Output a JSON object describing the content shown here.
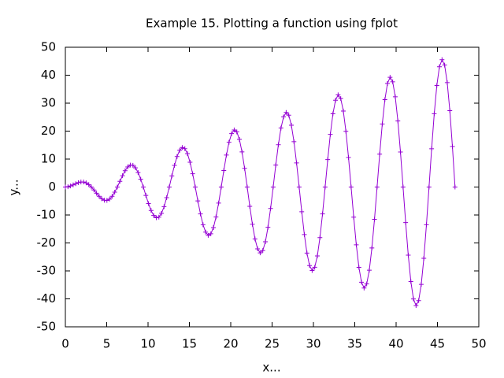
{
  "chart_data": {
    "type": "line",
    "title": "Example 15. Plotting a function using fplot",
    "xlabel": "x...",
    "ylabel": "y...",
    "x": [
      0,
      0.314,
      0.628,
      0.942,
      1.257,
      1.571,
      1.885,
      2.199,
      2.513,
      2.827,
      3.142,
      3.456,
      3.77,
      4.084,
      4.398,
      4.712,
      5.027,
      5.341,
      5.655,
      5.969,
      6.283,
      6.597,
      6.912,
      7.226,
      7.54,
      7.854,
      8.168,
      8.482,
      8.796,
      9.111,
      9.425,
      9.739,
      10.053,
      10.367,
      10.681,
      10.996,
      11.31,
      11.624,
      11.938,
      12.252,
      12.566,
      12.881,
      13.195,
      13.509,
      13.823,
      14.137,
      14.451,
      14.765,
      15.08,
      15.394,
      15.708,
      16.022,
      16.336,
      16.65,
      16.965,
      17.279,
      17.593,
      17.907,
      18.221,
      18.535,
      18.85,
      19.164,
      19.478,
      19.792,
      20.106,
      20.42,
      20.735,
      21.049,
      21.363,
      21.677,
      21.991,
      22.305,
      22.619,
      22.934,
      23.248,
      23.562,
      23.876,
      24.19,
      24.504,
      24.819,
      25.133,
      25.447,
      25.761,
      26.075,
      26.389,
      26.704,
      27.018,
      27.332,
      27.646,
      27.96,
      28.274,
      28.588,
      28.903,
      29.217,
      29.531,
      29.845,
      30.159,
      30.473,
      30.788,
      31.102,
      31.416,
      31.73,
      32.044,
      32.358,
      32.673,
      32.987,
      33.301,
      33.615,
      33.929,
      34.243,
      34.558,
      34.872,
      35.186,
      35.5,
      35.814,
      36.128,
      36.442,
      36.757,
      37.071,
      37.385,
      37.699,
      38.013,
      38.327,
      38.642,
      38.956,
      39.27,
      39.584,
      39.898,
      40.212,
      40.527,
      40.841,
      41.155,
      41.469,
      41.783,
      42.097,
      42.412,
      42.726,
      43.04,
      43.354,
      43.668,
      43.982,
      44.296,
      44.611,
      44.925,
      45.239,
      45.553,
      45.867,
      46.181,
      46.496,
      46.81,
      47.124
    ],
    "series": [
      {
        "color": "#9400d3",
        "values": [
          0,
          0.1,
          0.37,
          0.76,
          1.2,
          1.57,
          1.79,
          1.78,
          1.48,
          0.87,
          0,
          -1.07,
          -2.22,
          -3.3,
          -4.18,
          -4.71,
          -4.78,
          -4.32,
          -3.32,
          -1.84,
          0,
          2.04,
          4.06,
          5.85,
          7.17,
          7.85,
          7.77,
          6.86,
          5.17,
          2.82,
          0,
          -3.01,
          -5.91,
          -8.39,
          -10.16,
          -11.0,
          -10.76,
          -9.4,
          -7.02,
          -3.79,
          0,
          3.98,
          7.76,
          10.93,
          13.15,
          14.14,
          13.74,
          11.95,
          8.86,
          4.76,
          0,
          -4.95,
          -9.6,
          -13.47,
          -16.13,
          -17.28,
          -16.73,
          -14.49,
          -10.71,
          -5.73,
          0,
          5.92,
          11.45,
          16.01,
          19.12,
          20.42,
          19.72,
          17.03,
          12.56,
          6.7,
          0,
          -6.89,
          -13.3,
          -18.55,
          -22.11,
          -23.56,
          -22.71,
          -19.57,
          -14.4,
          -7.67,
          0,
          7.86,
          15.14,
          21.1,
          25.1,
          26.7,
          25.7,
          22.11,
          16.25,
          8.64,
          0,
          -8.83,
          -16.99,
          -23.64,
          -28.09,
          -29.85,
          -28.68,
          -24.65,
          -18.1,
          -9.61,
          0,
          9.81,
          18.84,
          26.18,
          31.07,
          32.99,
          31.67,
          27.2,
          19.94,
          10.58,
          0,
          -10.78,
          -20.68,
          -28.72,
          -34.06,
          -36.13,
          -34.66,
          -29.74,
          -21.79,
          -11.55,
          0,
          11.75,
          22.53,
          31.26,
          37.05,
          39.27,
          37.65,
          32.28,
          23.64,
          12.52,
          0,
          -12.72,
          -24.38,
          -33.8,
          -40.04,
          -42.41,
          -40.63,
          -34.82,
          -25.48,
          -13.49,
          0,
          13.69,
          26.22,
          36.34,
          43.03,
          45.55,
          43.62,
          37.36,
          27.33,
          14.47,
          0
        ]
      }
    ],
    "xlim": [
      0,
      50
    ],
    "xticks": [
      0,
      5,
      10,
      15,
      20,
      25,
      30,
      35,
      40,
      45,
      50
    ],
    "ylim": [
      -50,
      50
    ],
    "yticks": [
      -50,
      -40,
      -30,
      -20,
      -10,
      0,
      10,
      20,
      30,
      40,
      50
    ],
    "grid": false,
    "markers": "+"
  }
}
